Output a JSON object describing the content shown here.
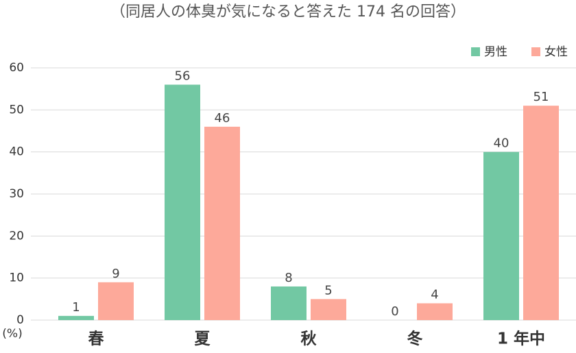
{
  "chart_data": {
    "type": "bar",
    "title": "（同居人の体臭が気になると答えた 174 名の回答）",
    "y_label": "(%)",
    "categories": [
      "春",
      "夏",
      "秋",
      "冬",
      "1 年中"
    ],
    "series": [
      {
        "name": "男性",
        "color": "#72c8a3",
        "values": [
          1,
          56,
          8,
          0,
          40
        ]
      },
      {
        "name": "女性",
        "color": "#fda99a",
        "values": [
          9,
          46,
          5,
          4,
          51
        ]
      }
    ],
    "ylim": [
      0,
      60
    ],
    "yticks": [
      0,
      10,
      20,
      30,
      40,
      50,
      60
    ],
    "grid": true,
    "legend": "top-right"
  }
}
